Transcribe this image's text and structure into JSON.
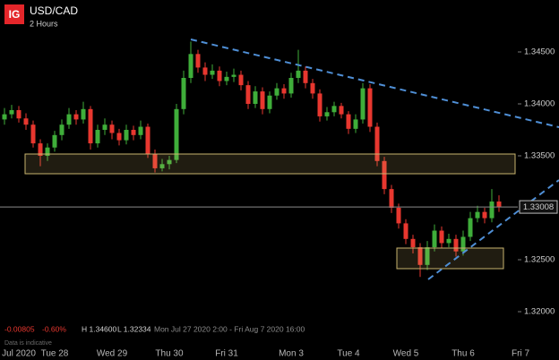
{
  "chart_data": {
    "type": "candlestick",
    "title": "USD/CAD",
    "subtitle": "2 Hours",
    "logo": "IG",
    "stats": {
      "change": "-0.00805",
      "change_pct": "-0.60%",
      "high": "H 1.34600",
      "low": "L 1.32334",
      "range": "Mon Jul 27 2020 2:00 - Fri Aug 7 2020 16:00",
      "note": "Data is indicative"
    },
    "up_color": "#3fae3a",
    "down_color": "#e8372f",
    "ylim": [
      1.3172,
      1.35
    ],
    "yticks": [
      {
        "value": 1.345,
        "label": "1.34500"
      },
      {
        "value": 1.34,
        "label": "1.34000"
      },
      {
        "value": 1.335,
        "label": "1.33500"
      },
      {
        "value": 1.325,
        "label": "1.32500"
      },
      {
        "value": 1.32,
        "label": "1.32000"
      }
    ],
    "categories": [
      null,
      null,
      "Jul 2020",
      null,
      null,
      null,
      null,
      "Tue 28",
      null,
      null,
      null,
      null,
      null,
      null,
      null,
      "Wed 29",
      null,
      null,
      null,
      null,
      null,
      null,
      null,
      "Thu 30",
      null,
      null,
      null,
      null,
      null,
      null,
      null,
      "Fri 31",
      null,
      null,
      null,
      null,
      null,
      null,
      null,
      null,
      "Mon 3",
      null,
      null,
      null,
      null,
      null,
      null,
      null,
      "Tue 4",
      null,
      null,
      null,
      null,
      null,
      null,
      null,
      "Wed 5",
      null,
      null,
      null,
      null,
      null,
      null,
      null,
      "Thu 6",
      null,
      null,
      null,
      null,
      null,
      null,
      null,
      "Fri 7"
    ],
    "ohlc": [
      [
        1.3385,
        1.3396,
        1.338,
        1.339
      ],
      [
        1.339,
        1.3399,
        1.3386,
        1.3394
      ],
      [
        1.3394,
        1.3398,
        1.3382,
        1.3386
      ],
      [
        1.3386,
        1.3391,
        1.3375,
        1.338
      ],
      [
        1.338,
        1.3384,
        1.3358,
        1.3362
      ],
      [
        1.3362,
        1.3366,
        1.334,
        1.335
      ],
      [
        1.335,
        1.3362,
        1.3345,
        1.3358
      ],
      [
        1.3358,
        1.3374,
        1.3354,
        1.337
      ],
      [
        1.337,
        1.3385,
        1.3365,
        1.338
      ],
      [
        1.338,
        1.3396,
        1.3376,
        1.339
      ],
      [
        1.339,
        1.3394,
        1.338,
        1.3385
      ],
      [
        1.3385,
        1.3402,
        1.3381,
        1.3395
      ],
      [
        1.3395,
        1.3398,
        1.3356,
        1.3362
      ],
      [
        1.3362,
        1.338,
        1.3358,
        1.3375
      ],
      [
        1.3375,
        1.3386,
        1.337,
        1.338
      ],
      [
        1.338,
        1.3384,
        1.3366,
        1.3372
      ],
      [
        1.3372,
        1.3376,
        1.336,
        1.3365
      ],
      [
        1.3365,
        1.338,
        1.3361,
        1.3375
      ],
      [
        1.3375,
        1.3379,
        1.3365,
        1.337
      ],
      [
        1.337,
        1.3384,
        1.3366,
        1.3378
      ],
      [
        1.3378,
        1.3381,
        1.3348,
        1.3352
      ],
      [
        1.3352,
        1.3356,
        1.3334,
        1.3338
      ],
      [
        1.3338,
        1.3347,
        1.3335,
        1.3342
      ],
      [
        1.3342,
        1.335,
        1.3337,
        1.3346
      ],
      [
        1.3346,
        1.34,
        1.3343,
        1.3395
      ],
      [
        1.3395,
        1.3432,
        1.339,
        1.3425
      ],
      [
        1.3425,
        1.346,
        1.342,
        1.3448
      ],
      [
        1.3448,
        1.3452,
        1.343,
        1.3435
      ],
      [
        1.3435,
        1.344,
        1.3422,
        1.3428
      ],
      [
        1.3428,
        1.3438,
        1.3424,
        1.3432
      ],
      [
        1.3432,
        1.3436,
        1.3417,
        1.3422
      ],
      [
        1.3422,
        1.3431,
        1.3418,
        1.3426
      ],
      [
        1.3426,
        1.3434,
        1.3421,
        1.3428
      ],
      [
        1.3428,
        1.3432,
        1.3413,
        1.3418
      ],
      [
        1.3418,
        1.3422,
        1.3395,
        1.34
      ],
      [
        1.34,
        1.3417,
        1.3396,
        1.3412
      ],
      [
        1.3412,
        1.3416,
        1.339,
        1.3395
      ],
      [
        1.3395,
        1.3412,
        1.3391,
        1.3408
      ],
      [
        1.3408,
        1.342,
        1.3404,
        1.3415
      ],
      [
        1.3415,
        1.3419,
        1.3405,
        1.341
      ],
      [
        1.341,
        1.343,
        1.3406,
        1.3425
      ],
      [
        1.3425,
        1.3452,
        1.342,
        1.3432
      ],
      [
        1.3432,
        1.3436,
        1.3415,
        1.342
      ],
      [
        1.342,
        1.3424,
        1.3405,
        1.341
      ],
      [
        1.341,
        1.3414,
        1.3383,
        1.3388
      ],
      [
        1.3388,
        1.3397,
        1.3384,
        1.3392
      ],
      [
        1.3392,
        1.3402,
        1.3388,
        1.3398
      ],
      [
        1.3398,
        1.3401,
        1.3386,
        1.339
      ],
      [
        1.339,
        1.3393,
        1.3371,
        1.3376
      ],
      [
        1.3376,
        1.339,
        1.3372,
        1.3385
      ],
      [
        1.3385,
        1.342,
        1.3381,
        1.3415
      ],
      [
        1.3415,
        1.3419,
        1.3373,
        1.3378
      ],
      [
        1.3378,
        1.3382,
        1.334,
        1.3345
      ],
      [
        1.3345,
        1.3349,
        1.3313,
        1.3318
      ],
      [
        1.3318,
        1.3322,
        1.3295,
        1.33
      ],
      [
        1.33,
        1.3304,
        1.328,
        1.3285
      ],
      [
        1.3285,
        1.3289,
        1.3265,
        1.327
      ],
      [
        1.327,
        1.3274,
        1.3256,
        1.3262
      ],
      [
        1.3262,
        1.3266,
        1.32334,
        1.3245
      ],
      [
        1.3245,
        1.3268,
        1.324,
        1.3262
      ],
      [
        1.3262,
        1.3284,
        1.3258,
        1.3278
      ],
      [
        1.3278,
        1.3282,
        1.3261,
        1.3266
      ],
      [
        1.3266,
        1.3275,
        1.3262,
        1.327
      ],
      [
        1.327,
        1.3274,
        1.3253,
        1.3258
      ],
      [
        1.3258,
        1.3278,
        1.3254,
        1.3272
      ],
      [
        1.3272,
        1.3296,
        1.3268,
        1.329
      ],
      [
        1.329,
        1.3302,
        1.3286,
        1.3296
      ],
      [
        1.3296,
        1.33,
        1.3285,
        1.329
      ],
      [
        1.329,
        1.3318,
        1.3286,
        1.3306
      ],
      [
        1.3306,
        1.3312,
        1.3296,
        1.33008
      ],
      null,
      null,
      null
    ]
  }
}
